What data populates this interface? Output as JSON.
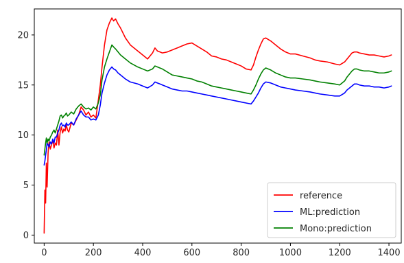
{
  "chart_data": {
    "type": "line",
    "title": "",
    "xlabel": "",
    "ylabel": "",
    "xlim": [
      -40,
      1450
    ],
    "ylim": [
      -0.8,
      22.6
    ],
    "x_ticks": [
      0,
      200,
      400,
      600,
      800,
      1000,
      1200,
      1400
    ],
    "y_ticks": [
      0,
      5,
      10,
      15,
      20
    ],
    "grid": false,
    "legend_position": "bottom-right",
    "series": [
      {
        "name": "reference",
        "color": "#ff0000",
        "x": [
          0,
          3,
          6,
          9,
          12,
          16,
          20,
          25,
          30,
          35,
          40,
          45,
          50,
          55,
          60,
          65,
          70,
          75,
          80,
          85,
          90,
          95,
          100,
          110,
          120,
          130,
          140,
          150,
          160,
          170,
          180,
          190,
          200,
          210,
          220,
          228,
          235,
          245,
          255,
          265,
          275,
          282,
          290,
          300,
          310,
          330,
          350,
          380,
          400,
          420,
          440,
          450,
          460,
          470,
          480,
          500,
          520,
          540,
          560,
          580,
          600,
          620,
          640,
          660,
          680,
          700,
          720,
          740,
          760,
          780,
          800,
          820,
          840,
          850,
          860,
          870,
          880,
          890,
          900,
          920,
          940,
          960,
          980,
          1000,
          1020,
          1050,
          1080,
          1100,
          1120,
          1150,
          1180,
          1200,
          1220,
          1230,
          1240,
          1250,
          1260,
          1270,
          1280,
          1300,
          1320,
          1340,
          1360,
          1380,
          1400,
          1410
        ],
        "values": [
          0.2,
          4.5,
          3.2,
          7.2,
          4.8,
          8.2,
          9.3,
          8.6,
          9.0,
          9.5,
          8.7,
          9.2,
          9.0,
          10.5,
          9.0,
          10.3,
          10.8,
          10.2,
          10.6,
          10.4,
          11.0,
          10.5,
          10.3,
          11.2,
          11.0,
          11.5,
          12.0,
          12.8,
          12.5,
          12.0,
          12.3,
          11.8,
          12.0,
          11.7,
          13.5,
          15.0,
          16.8,
          19.0,
          20.5,
          21.2,
          21.7,
          21.4,
          21.6,
          21.1,
          20.7,
          19.7,
          19.0,
          18.4,
          18.0,
          17.6,
          18.2,
          18.7,
          18.4,
          18.3,
          18.2,
          18.3,
          18.5,
          18.7,
          18.9,
          19.1,
          19.2,
          18.9,
          18.6,
          18.3,
          17.9,
          17.8,
          17.6,
          17.5,
          17.3,
          17.1,
          16.9,
          16.6,
          16.5,
          17.0,
          17.8,
          18.5,
          19.1,
          19.6,
          19.7,
          19.4,
          19.0,
          18.6,
          18.3,
          18.1,
          18.1,
          17.9,
          17.7,
          17.5,
          17.4,
          17.3,
          17.1,
          17.0,
          17.3,
          17.6,
          17.9,
          18.2,
          18.3,
          18.3,
          18.2,
          18.1,
          18.0,
          18.0,
          17.9,
          17.8,
          17.9,
          18.0
        ]
      },
      {
        "name": "ML:prediction",
        "color": "#0000ff",
        "x": [
          0,
          3,
          6,
          9,
          12,
          16,
          20,
          25,
          30,
          35,
          40,
          45,
          50,
          55,
          60,
          65,
          70,
          75,
          80,
          85,
          90,
          95,
          100,
          110,
          120,
          130,
          140,
          150,
          160,
          170,
          180,
          190,
          200,
          210,
          220,
          228,
          235,
          245,
          255,
          265,
          275,
          282,
          290,
          300,
          310,
          330,
          350,
          380,
          400,
          420,
          440,
          450,
          460,
          470,
          480,
          500,
          520,
          540,
          560,
          580,
          600,
          620,
          640,
          660,
          680,
          700,
          720,
          740,
          760,
          780,
          800,
          820,
          840,
          850,
          860,
          870,
          880,
          890,
          900,
          920,
          940,
          960,
          980,
          1000,
          1020,
          1050,
          1080,
          1100,
          1120,
          1150,
          1180,
          1200,
          1220,
          1230,
          1240,
          1250,
          1260,
          1270,
          1280,
          1300,
          1320,
          1340,
          1360,
          1380,
          1400,
          1410
        ],
        "values": [
          7.0,
          7.4,
          8.0,
          8.5,
          9.2,
          9.0,
          8.8,
          9.3,
          9.1,
          9.6,
          9.2,
          9.8,
          9.8,
          10.2,
          10.5,
          11.0,
          11.2,
          10.9,
          11.0,
          10.8,
          11.2,
          11.0,
          11.0,
          11.3,
          11.0,
          11.6,
          12.0,
          12.4,
          12.0,
          11.8,
          11.8,
          11.5,
          11.6,
          11.5,
          12.0,
          13.0,
          14.2,
          15.2,
          16.0,
          16.5,
          16.8,
          16.6,
          16.5,
          16.2,
          16.0,
          15.6,
          15.3,
          15.1,
          14.9,
          14.7,
          15.0,
          15.3,
          15.2,
          15.1,
          15.0,
          14.8,
          14.6,
          14.5,
          14.4,
          14.4,
          14.3,
          14.2,
          14.1,
          14.0,
          13.9,
          13.8,
          13.7,
          13.6,
          13.5,
          13.4,
          13.3,
          13.2,
          13.1,
          13.4,
          13.8,
          14.2,
          14.7,
          15.1,
          15.3,
          15.2,
          15.0,
          14.8,
          14.7,
          14.6,
          14.5,
          14.4,
          14.3,
          14.2,
          14.1,
          14.0,
          13.9,
          13.9,
          14.2,
          14.5,
          14.7,
          14.9,
          15.1,
          15.1,
          15.0,
          14.9,
          14.9,
          14.8,
          14.8,
          14.7,
          14.8,
          14.9
        ]
      },
      {
        "name": "Mono:prediction",
        "color": "#008000",
        "x": [
          0,
          3,
          6,
          9,
          12,
          16,
          20,
          25,
          30,
          35,
          40,
          45,
          50,
          55,
          60,
          65,
          70,
          75,
          80,
          85,
          90,
          95,
          100,
          110,
          120,
          130,
          140,
          150,
          160,
          170,
          180,
          190,
          200,
          210,
          220,
          228,
          235,
          245,
          255,
          265,
          275,
          282,
          290,
          300,
          310,
          330,
          350,
          380,
          400,
          420,
          440,
          450,
          460,
          470,
          480,
          500,
          520,
          540,
          560,
          580,
          600,
          620,
          640,
          660,
          680,
          700,
          720,
          740,
          760,
          780,
          800,
          820,
          840,
          850,
          860,
          870,
          880,
          890,
          900,
          920,
          940,
          960,
          980,
          1000,
          1020,
          1050,
          1080,
          1100,
          1120,
          1150,
          1180,
          1200,
          1220,
          1230,
          1240,
          1250,
          1260,
          1270,
          1280,
          1300,
          1320,
          1340,
          1360,
          1380,
          1400,
          1410
        ],
        "values": [
          8.0,
          8.6,
          9.2,
          9.7,
          9.2,
          9.6,
          9.4,
          9.8,
          10.0,
          10.3,
          10.5,
          10.2,
          10.6,
          11.0,
          11.4,
          11.9,
          12.0,
          11.7,
          11.9,
          12.0,
          12.2,
          11.9,
          12.0,
          12.3,
          12.1,
          12.6,
          12.9,
          13.1,
          12.8,
          12.6,
          12.7,
          12.5,
          12.8,
          12.6,
          13.2,
          14.0,
          15.5,
          16.8,
          17.6,
          18.3,
          19.0,
          18.8,
          18.6,
          18.3,
          18.0,
          17.6,
          17.2,
          16.8,
          16.6,
          16.4,
          16.6,
          16.9,
          16.8,
          16.7,
          16.6,
          16.3,
          16.0,
          15.9,
          15.8,
          15.7,
          15.6,
          15.4,
          15.3,
          15.1,
          14.9,
          14.8,
          14.7,
          14.6,
          14.5,
          14.4,
          14.3,
          14.2,
          14.1,
          14.5,
          15.0,
          15.6,
          16.1,
          16.5,
          16.7,
          16.5,
          16.2,
          16.0,
          15.8,
          15.7,
          15.7,
          15.6,
          15.5,
          15.4,
          15.3,
          15.2,
          15.1,
          15.0,
          15.4,
          15.8,
          16.1,
          16.4,
          16.6,
          16.6,
          16.5,
          16.4,
          16.4,
          16.3,
          16.2,
          16.2,
          16.3,
          16.4
        ]
      }
    ]
  }
}
